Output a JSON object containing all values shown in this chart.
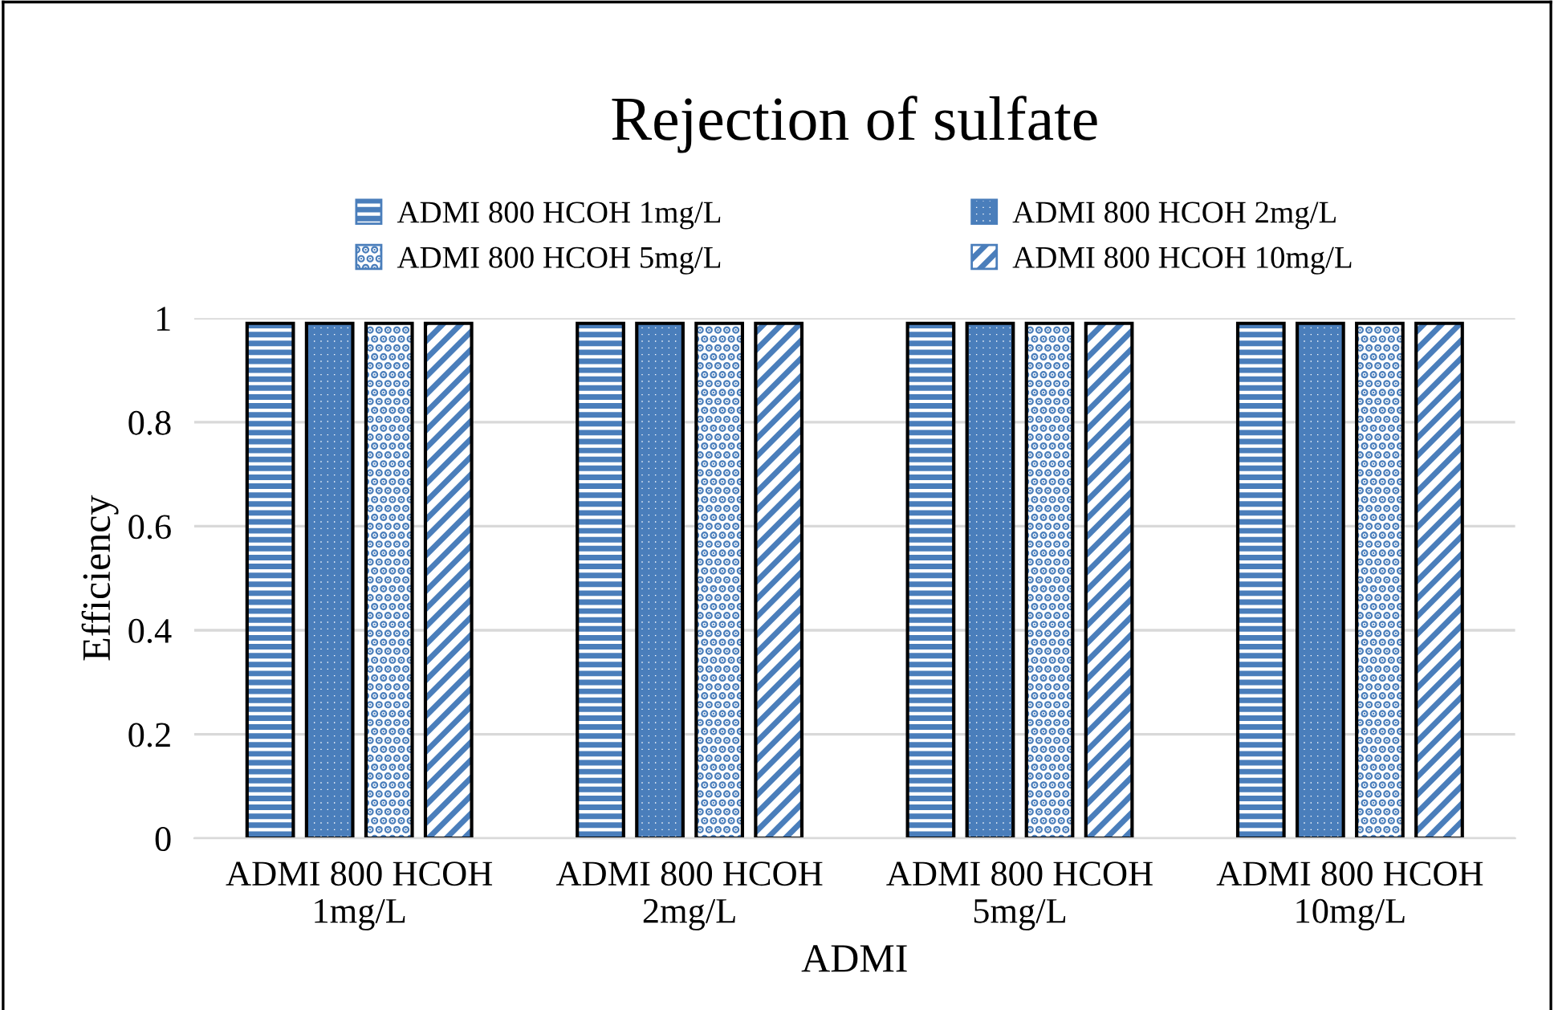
{
  "chart_data": {
    "type": "bar",
    "title": "Rejection of sulfate",
    "xlabel": "ADMI",
    "ylabel": "Efficiency",
    "categories": [
      "ADMI 800 HCOH\n1mg/L",
      "ADMI 800 HCOH\n2mg/L",
      "ADMI 800 HCOH\n5mg/L",
      "ADMI 800 HCOH\n10mg/L"
    ],
    "series": [
      {
        "name": "ADMI 800 HCOH 1mg/L",
        "color": "#4a7ebb",
        "values": [
          0.99,
          0.99,
          0.99,
          0.99
        ]
      },
      {
        "name": "ADMI 800 HCOH 2mg/L",
        "color": "#4a7ebb",
        "values": [
          0.99,
          0.99,
          0.99,
          0.99
        ]
      },
      {
        "name": "ADMI 800 HCOH 5mg/L",
        "color": "#4a7ebb",
        "values": [
          0.99,
          0.99,
          0.99,
          0.99
        ]
      },
      {
        "name": "ADMI 800 HCOH 10mg/L",
        "color": "#4a7ebb",
        "values": [
          0.99,
          0.99,
          0.99,
          0.99
        ]
      }
    ],
    "ylim": [
      0,
      1
    ],
    "yticks": [
      0,
      0.2,
      0.4,
      0.6,
      0.8,
      1
    ],
    "grid": "y",
    "legend": "top"
  }
}
